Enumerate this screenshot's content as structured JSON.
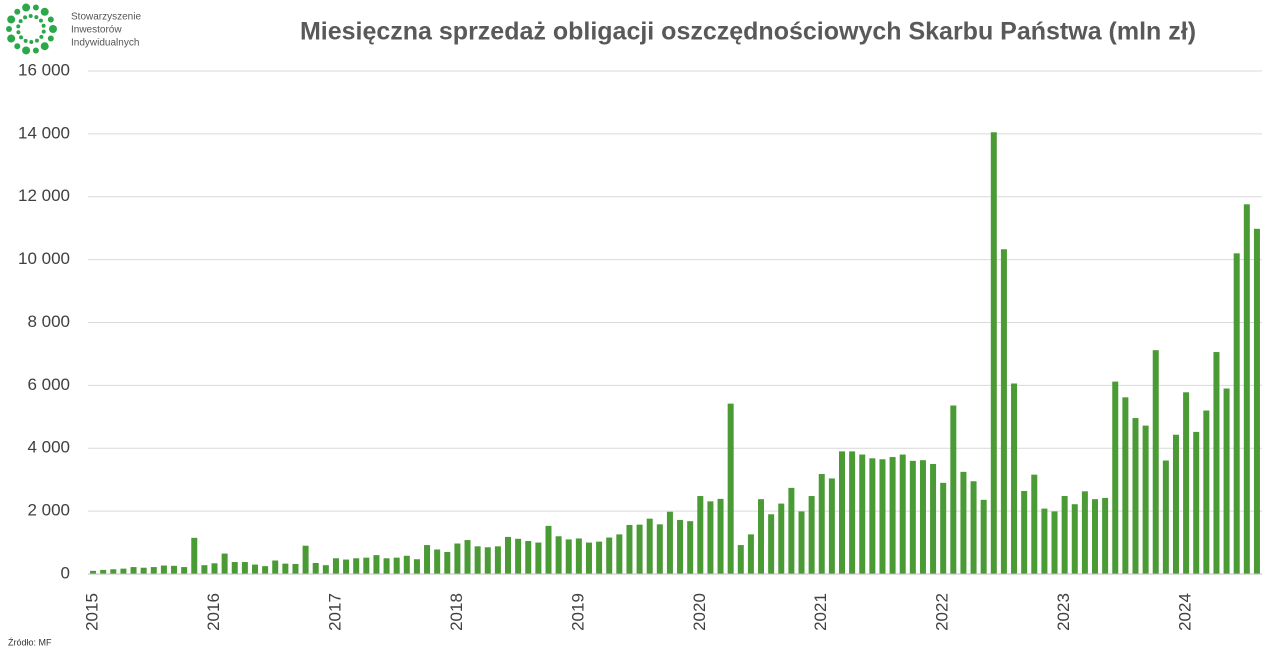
{
  "logo": {
    "lines": [
      "Stowarzyszenie",
      "Inwestorów",
      "Indywidualnych"
    ]
  },
  "source": "Źródło: MF",
  "chart_data": {
    "type": "bar",
    "title": "Miesięczna sprzedaż obligacji oszczędnościowych Skarbu Państwa (mln zł)",
    "categories": [
      "2015",
      null,
      null,
      null,
      null,
      null,
      null,
      null,
      null,
      null,
      null,
      null,
      "2016",
      null,
      null,
      null,
      null,
      null,
      null,
      null,
      null,
      null,
      null,
      null,
      "2017",
      null,
      null,
      null,
      null,
      null,
      null,
      null,
      null,
      null,
      null,
      null,
      "2018",
      null,
      null,
      null,
      null,
      null,
      null,
      null,
      null,
      null,
      null,
      null,
      "2019",
      null,
      null,
      null,
      null,
      null,
      null,
      null,
      null,
      null,
      null,
      null,
      "2020",
      null,
      null,
      null,
      null,
      null,
      null,
      null,
      null,
      null,
      null,
      null,
      "2021",
      null,
      null,
      null,
      null,
      null,
      null,
      null,
      null,
      null,
      null,
      null,
      "2022",
      null,
      null,
      null,
      null,
      null,
      null,
      null,
      null,
      null,
      null,
      null,
      "2023",
      null,
      null,
      null,
      null,
      null,
      null,
      null,
      null,
      null,
      null,
      null,
      "2024",
      null,
      null,
      null,
      null,
      null,
      null,
      null
    ],
    "values": [
      100,
      130,
      150,
      170,
      220,
      200,
      220,
      270,
      260,
      220,
      1150,
      280,
      340,
      650,
      380,
      380,
      300,
      250,
      430,
      330,
      320,
      900,
      350,
      280,
      500,
      460,
      500,
      520,
      600,
      500,
      520,
      580,
      470,
      920,
      780,
      700,
      970,
      1080,
      880,
      850,
      880,
      1180,
      1120,
      1050,
      1000,
      1530,
      1200,
      1100,
      1130,
      1000,
      1030,
      1160,
      1260,
      1560,
      1570,
      1760,
      1580,
      1980,
      1720,
      1680,
      2480,
      2310,
      2390,
      5420,
      920,
      1260,
      2380,
      1900,
      2240,
      2740,
      1990,
      2480,
      3180,
      3040,
      3900,
      3900,
      3800,
      3680,
      3650,
      3720,
      3800,
      3600,
      3620,
      3500,
      2900,
      5360,
      3250,
      2950,
      2360,
      14050,
      10330,
      6060,
      2640,
      3160,
      2080,
      1990,
      2480,
      2220,
      2630,
      2380,
      2420,
      6120,
      5620,
      4960,
      4720,
      7120,
      3610,
      4430,
      5780,
      4520,
      5200,
      7060,
      5900,
      10200,
      11760,
      10980
    ],
    "color": "#4a9a36",
    "ylim": [
      0,
      16000
    ],
    "yticks": [
      0,
      {
        "value": 2000,
        "label": "2 000"
      },
      {
        "value": 4000,
        "label": "4 000"
      },
      {
        "value": 6000,
        "label": "6 000"
      },
      {
        "value": 8000,
        "label": "8 000"
      },
      {
        "value": 10000,
        "label": "10 000"
      },
      {
        "value": 12000,
        "label": "12 000"
      },
      {
        "value": 14000,
        "label": "14 000"
      },
      {
        "value": 16000,
        "label": "16 000"
      }
    ],
    "grid": true
  }
}
